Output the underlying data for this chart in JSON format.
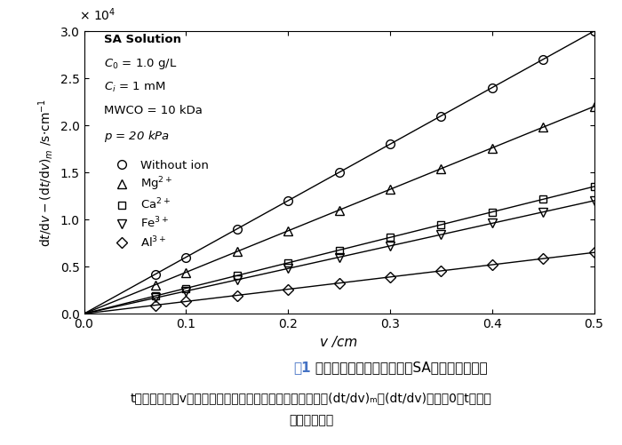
{
  "xlabel": "v /cm",
  "xlim": [
    0,
    0.5
  ],
  "ylim": [
    0,
    3.0
  ],
  "xticks": [
    0,
    0.1,
    0.2,
    0.3,
    0.4,
    0.5
  ],
  "yticks": [
    0,
    0.5,
    1.0,
    1.5,
    2.0,
    2.5,
    3.0
  ],
  "scale_label": "× 10⁴",
  "annotation": [
    {
      "text": "SA Solution",
      "bold": true
    },
    {
      "text": "C₀ = 1.0 g/L",
      "bold": false
    },
    {
      "text": "Cᵢ = 1 mM",
      "bold": false
    },
    {
      "text": "MWCO = 10 kDa",
      "bold": false
    },
    {
      "text": "p = 20 kPa",
      "bold": false,
      "italic": true
    }
  ],
  "series": [
    {
      "label": "Without ion",
      "marker": "o",
      "slope": 6.0,
      "x_data": [
        0.07,
        0.1,
        0.15,
        0.2,
        0.25,
        0.3,
        0.35,
        0.4,
        0.45,
        0.5
      ],
      "markersize": 7
    },
    {
      "label": "Mg2+",
      "marker": "^",
      "slope": 4.4,
      "x_data": [
        0.07,
        0.1,
        0.15,
        0.2,
        0.25,
        0.3,
        0.35,
        0.4,
        0.45,
        0.5
      ],
      "markersize": 7
    },
    {
      "label": "Ca2+",
      "marker": "s",
      "slope": 2.7,
      "x_data": [
        0.07,
        0.1,
        0.15,
        0.2,
        0.25,
        0.3,
        0.35,
        0.4,
        0.45,
        0.5
      ],
      "markersize": 6
    },
    {
      "label": "Fe3+",
      "marker": "v",
      "slope": 2.4,
      "x_data": [
        0.07,
        0.1,
        0.15,
        0.2,
        0.25,
        0.3,
        0.35,
        0.4,
        0.45,
        0.5
      ],
      "markersize": 7
    },
    {
      "label": "Al3+",
      "marker": "D",
      "slope": 1.3,
      "x_data": [
        0.07,
        0.1,
        0.15,
        0.2,
        0.25,
        0.3,
        0.35,
        0.4,
        0.45,
        0.5
      ],
      "markersize": 6
    }
  ],
  "caption_label": "图1",
  "caption_label_color": "#4472C4",
  "caption_text": " 有、无高价金属离子作用时SA溢液的超滤行为",
  "subcaption_line1": "t为过滤时间，v为单位有效膜面积上滤出的累积滤液体积，(dt/dv)ₘ、(dt/dv)分别为0、t时刻过",
  "subcaption_line2": "滤速率的倒数",
  "background_color": "#ffffff"
}
